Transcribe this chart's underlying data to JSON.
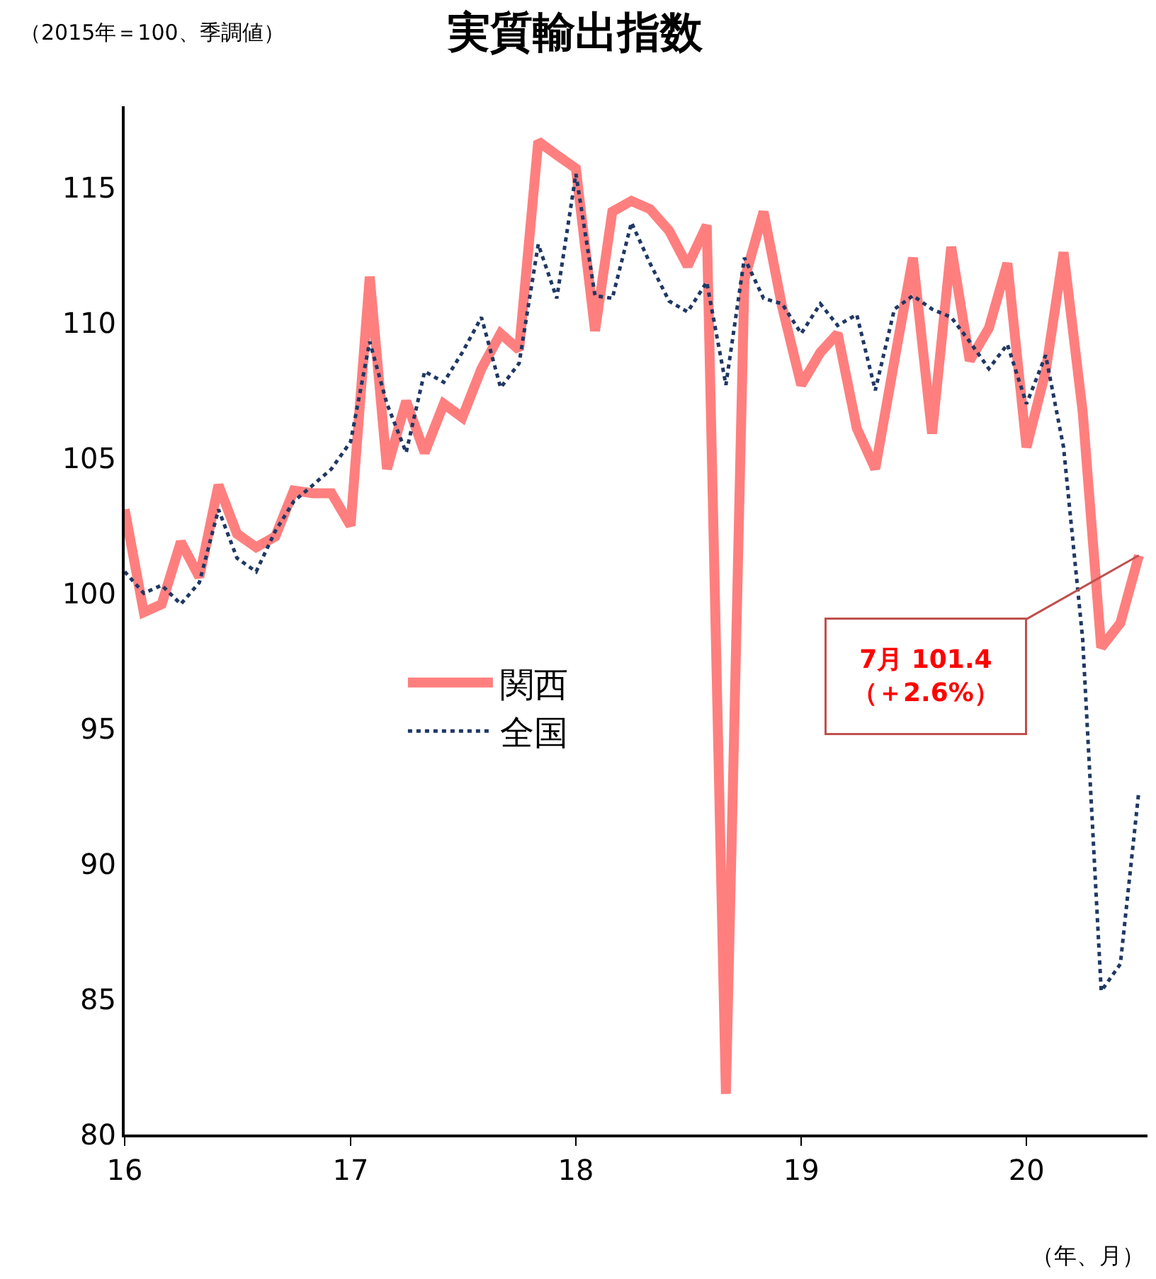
{
  "chart_data": {
    "type": "line",
    "title": "実質輸出指数",
    "subtitle": "（2015年＝100、季調値）",
    "xlabel": "（年、月）",
    "x": [
      "2016-01",
      "2016-02",
      "2016-03",
      "2016-04",
      "2016-05",
      "2016-06",
      "2016-07",
      "2016-08",
      "2016-09",
      "2016-10",
      "2016-11",
      "2016-12",
      "2017-01",
      "2017-02",
      "2017-03",
      "2017-04",
      "2017-05",
      "2017-06",
      "2017-07",
      "2017-08",
      "2017-09",
      "2017-10",
      "2017-11",
      "2017-12",
      "2018-01",
      "2018-02",
      "2018-03",
      "2018-04",
      "2018-05",
      "2018-06",
      "2018-07",
      "2018-08",
      "2018-09",
      "2018-10",
      "2018-11",
      "2018-12",
      "2019-01",
      "2019-02",
      "2019-03",
      "2019-04",
      "2019-05",
      "2019-06",
      "2019-07",
      "2019-08",
      "2019-09",
      "2019-10",
      "2019-11",
      "2019-12",
      "2020-01",
      "2020-02",
      "2020-03",
      "2020-04",
      "2020-05",
      "2020-06",
      "2020-07"
    ],
    "series": [
      {
        "name": "関西",
        "color": "#ff7f7f",
        "line_style": "solid",
        "values": [
          103.1,
          99.3,
          99.6,
          101.9,
          100.6,
          104.0,
          102.2,
          101.7,
          102.1,
          103.8,
          103.7,
          103.7,
          102.5,
          111.7,
          104.6,
          107.1,
          105.2,
          107.0,
          106.5,
          108.3,
          109.6,
          109.0,
          116.7,
          116.2,
          115.7,
          109.7,
          114.1,
          114.5,
          114.2,
          113.4,
          112.1,
          113.6,
          81.5,
          111.6,
          114.1,
          110.6,
          107.7,
          108.9,
          109.6,
          106.1,
          104.6,
          108.6,
          112.4,
          105.9,
          112.8,
          108.6,
          109.8,
          112.2,
          105.4,
          108.2,
          112.6,
          106.7,
          98.0,
          98.9,
          101.4
        ]
      },
      {
        "name": "全国",
        "color": "#1f3864",
        "line_style": "dotted",
        "values": [
          100.8,
          100.0,
          100.3,
          99.6,
          100.4,
          103.1,
          101.3,
          100.8,
          102.3,
          103.4,
          104.0,
          104.6,
          105.6,
          109.3,
          107.0,
          105.2,
          108.2,
          107.8,
          108.9,
          110.2,
          107.6,
          108.5,
          112.9,
          110.9,
          115.5,
          111.0,
          110.9,
          113.7,
          112.2,
          110.8,
          110.4,
          111.5,
          107.7,
          112.4,
          110.9,
          110.7,
          109.6,
          110.7,
          109.9,
          110.3,
          107.5,
          110.5,
          111.0,
          110.5,
          110.2,
          109.3,
          108.3,
          109.2,
          107.0,
          108.8,
          105.4,
          98.3,
          85.3,
          86.3,
          92.7
        ]
      }
    ],
    "xlim": [
      "2016-01",
      "2020-07-15"
    ],
    "xticks": [
      {
        "value": "2016-01",
        "label": "16"
      },
      {
        "value": "2017-01",
        "label": "17"
      },
      {
        "value": "2018-01",
        "label": "18"
      },
      {
        "value": "2019-01",
        "label": "19"
      },
      {
        "value": "2020-01",
        "label": "20"
      }
    ],
    "ylim": [
      80,
      118
    ],
    "yticks": [
      80,
      85,
      90,
      95,
      100,
      105,
      110,
      115
    ],
    "legend": "center",
    "marker": "none",
    "annotations": [
      "7月 101.4\n（＋2.6%）"
    ]
  }
}
